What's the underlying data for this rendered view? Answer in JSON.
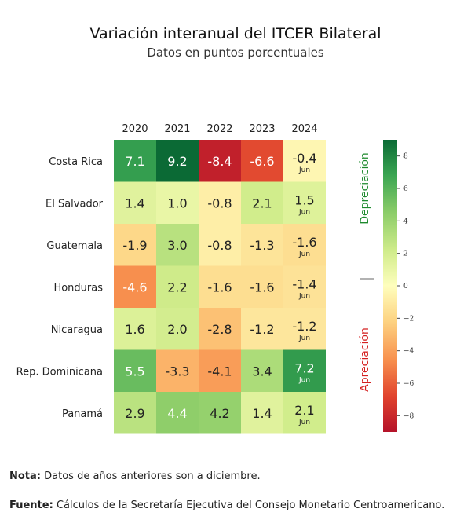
{
  "title": "Variación interanual del ITCER Bilateral",
  "subtitle": "Datos en puntos porcentuales",
  "chart_data": {
    "type": "heatmap",
    "columns": [
      "2020",
      "2021",
      "2022",
      "2023",
      "2024"
    ],
    "rows": [
      "Costa Rica",
      "El Salvador",
      "Guatemala",
      "Honduras",
      "Nicaragua",
      "Rep. Dominicana",
      "Panamá"
    ],
    "values": [
      [
        7.1,
        9.2,
        -8.4,
        -6.6,
        -0.4
      ],
      [
        1.4,
        1.0,
        -0.8,
        2.1,
        1.5
      ],
      [
        -1.9,
        3.0,
        -0.8,
        -1.3,
        -1.6
      ],
      [
        -4.6,
        2.2,
        -1.6,
        -1.6,
        -1.4
      ],
      [
        1.6,
        2.0,
        -2.8,
        -1.2,
        -1.2
      ],
      [
        5.5,
        -3.3,
        -4.1,
        3.4,
        7.2
      ],
      [
        2.9,
        4.4,
        4.2,
        1.4,
        2.1
      ]
    ],
    "last_column_sublabel": "Jun",
    "colorbar": {
      "min": -9,
      "max": 9,
      "ticks": [
        8,
        6,
        4,
        2,
        0,
        -2,
        -4,
        -6,
        -8
      ],
      "colormap": "RdYlGn",
      "top_label": "Depreciación",
      "bottom_label": "Apreciación",
      "top_label_color": "#1e8a2e",
      "bottom_label_color": "#d42020"
    }
  },
  "notes": {
    "nota_label": "Nota:",
    "nota_text": "Datos de años anteriores son a diciembre.",
    "fuente_label": "Fuente:",
    "fuente_text": "Cálculos de la Secretaría Ejecutiva del Consejo Monetario Centroamericano."
  }
}
